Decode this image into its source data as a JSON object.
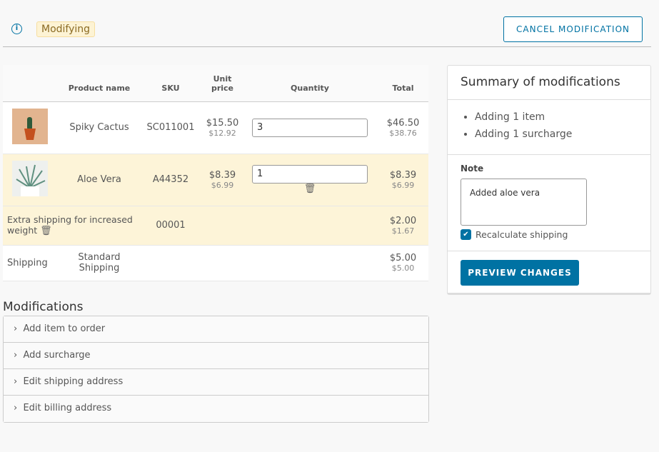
{
  "header": {
    "status_badge": "Modifying",
    "cancel_label": "CANCEL MODIFICATION",
    "info_icon": "info-icon"
  },
  "table": {
    "columns": [
      "",
      "Product name",
      "SKU",
      "Unit price",
      "Quantity",
      "Total"
    ],
    "unit_price_l1": "Unit",
    "unit_price_l2": "price",
    "rows": [
      {
        "name": "Spiky Cactus",
        "sku": "SC011001",
        "price": "$15.50",
        "price_net": "$12.92",
        "qty": "3",
        "total": "$46.50",
        "total_net": "$38.76"
      },
      {
        "name": "Aloe Vera",
        "sku": "A44352",
        "price": "$8.39",
        "price_net": "$6.99",
        "qty": "1",
        "total": "$8.39",
        "total_net": "$6.99"
      },
      {
        "name": "Extra shipping for increased weight",
        "sku": "00001",
        "total": "$2.00",
        "total_net": "$1.67"
      },
      {
        "name": "Shipping",
        "method": "Standard Shipping",
        "total": "$5.00",
        "total_net": "$5.00"
      }
    ]
  },
  "modifications": {
    "title": "Modifications",
    "items": [
      "Add item to order",
      "Add surcharge",
      "Edit shipping address",
      "Edit billing address"
    ]
  },
  "summary": {
    "title": "Summary of modifications",
    "items": [
      "Adding 1 item",
      "Adding 1 surcharge"
    ],
    "note_label": "Note",
    "note_value": "Added aloe vera",
    "recalc_label": "Recalculate shipping",
    "recalc_checked": true,
    "preview_label": "PREVIEW CHANGES"
  },
  "colors": {
    "accent": "#0072a3",
    "highlight": "#fdf4d8"
  }
}
